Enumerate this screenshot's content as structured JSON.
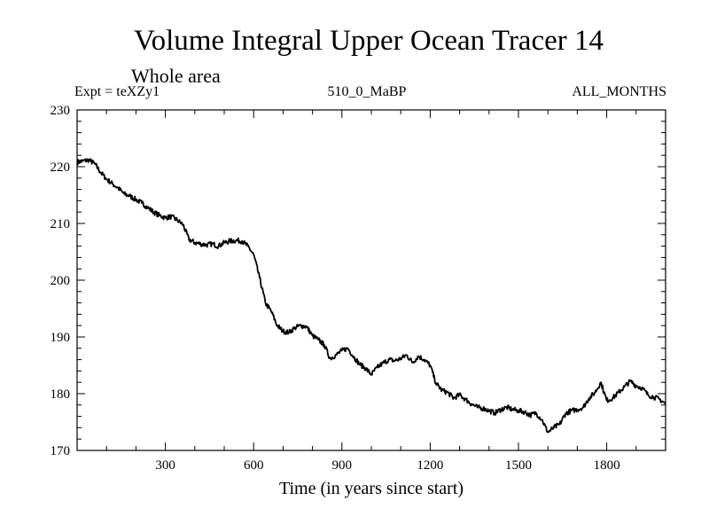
{
  "chart_data": {
    "type": "line",
    "title": "Volume Integral Upper Ocean Tracer 14",
    "subtitle": "Whole area",
    "expt_label": "Expt = teXZy1",
    "run_label": "510_0_MaBP",
    "months_label": "ALL_MONTHS",
    "xlabel": "Time (in years since start)",
    "ylabel": "",
    "xlim": [
      0,
      2000
    ],
    "ylim": [
      170,
      230
    ],
    "x_ticks": [
      300,
      600,
      900,
      1200,
      1500,
      1800
    ],
    "y_ticks": [
      170,
      180,
      190,
      200,
      210,
      220,
      230
    ],
    "grid": false,
    "series": [
      {
        "name": "teXZy1",
        "color": "#000000",
        "x": [
          0,
          20,
          40,
          60,
          80,
          100,
          120,
          140,
          160,
          180,
          200,
          220,
          240,
          260,
          280,
          300,
          320,
          340,
          360,
          380,
          400,
          420,
          440,
          460,
          480,
          500,
          520,
          540,
          560,
          580,
          600,
          620,
          640,
          660,
          680,
          700,
          720,
          740,
          760,
          780,
          800,
          820,
          840,
          860,
          880,
          900,
          920,
          940,
          960,
          980,
          1000,
          1020,
          1040,
          1060,
          1080,
          1100,
          1120,
          1140,
          1160,
          1180,
          1200,
          1220,
          1240,
          1260,
          1280,
          1300,
          1320,
          1340,
          1360,
          1380,
          1400,
          1420,
          1440,
          1460,
          1480,
          1500,
          1520,
          1540,
          1560,
          1580,
          1600,
          1620,
          1640,
          1660,
          1680,
          1700,
          1720,
          1740,
          1760,
          1780,
          1800,
          1820,
          1840,
          1860,
          1880,
          1900,
          1920,
          1940,
          1960,
          1980,
          2000
        ],
        "y": [
          220.8,
          221.0,
          221.2,
          220.5,
          219.0,
          217.8,
          217.0,
          216.2,
          215.2,
          214.8,
          214.2,
          213.6,
          212.8,
          212.0,
          211.4,
          211.0,
          211.2,
          210.6,
          209.8,
          207.2,
          206.6,
          206.4,
          206.2,
          206.4,
          206.0,
          206.6,
          206.9,
          207.0,
          206.9,
          206.0,
          204.5,
          200.5,
          196.0,
          194.5,
          192.0,
          191.0,
          190.8,
          191.6,
          192.0,
          191.8,
          190.2,
          189.5,
          188.6,
          186.2,
          186.8,
          187.6,
          188.0,
          186.5,
          185.2,
          184.5,
          183.4,
          184.6,
          185.4,
          186.0,
          185.8,
          186.2,
          186.8,
          185.5,
          186.6,
          186.0,
          185.0,
          181.8,
          180.6,
          180.2,
          179.2,
          179.8,
          179.0,
          178.2,
          177.6,
          177.4,
          177.0,
          176.6,
          177.2,
          177.6,
          177.2,
          177.0,
          176.8,
          176.2,
          176.6,
          175.4,
          173.2,
          174.0,
          174.6,
          176.5,
          177.0,
          177.2,
          177.6,
          179.2,
          180.2,
          182.0,
          178.8,
          179.2,
          180.2,
          181.2,
          182.2,
          181.4,
          181.0,
          179.8,
          179.4,
          179.0,
          178.2
        ]
      }
    ]
  }
}
